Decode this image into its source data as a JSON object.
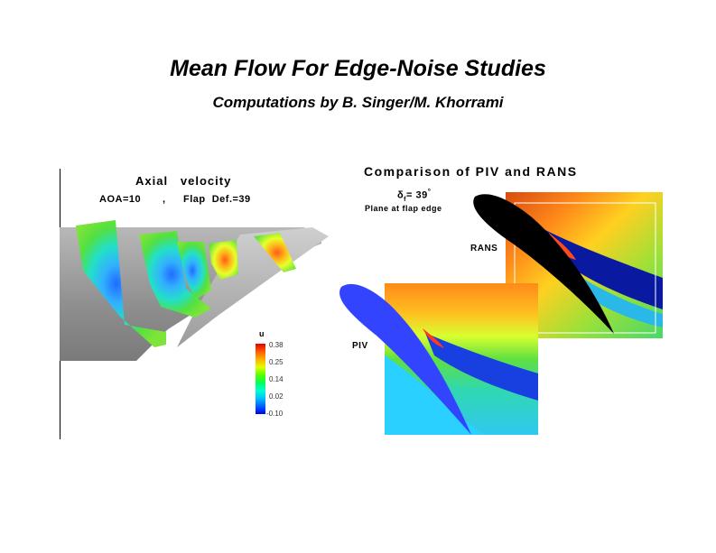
{
  "slide": {
    "title": "Mean Flow For Edge-Noise Studies",
    "subtitle": "Computations by B. Singer/M. Khorrami"
  },
  "left_figure": {
    "heading": "Axial   velocity",
    "condition_aoa": "AOA=10",
    "condition_sep": ",",
    "condition_flap": "Flap  Def.=39",
    "colorbar": {
      "variable": "u",
      "ticks": [
        "0.38",
        "0.25",
        "0.14",
        "0.02",
        "-0.10"
      ]
    }
  },
  "right_figure": {
    "heading": "Comparison of PIV and RANS",
    "delta_symbol": "δ",
    "delta_sub": "f",
    "delta_value": "= 39",
    "delta_unit": "°",
    "plane_label": "Plane at flap edge",
    "rans_label": "RANS",
    "piv_label": "PIV"
  },
  "colors": {
    "rans_airfoil": "#000000",
    "piv_airfoil": "#3344ff",
    "wing_surface": "#9a9a9a"
  }
}
